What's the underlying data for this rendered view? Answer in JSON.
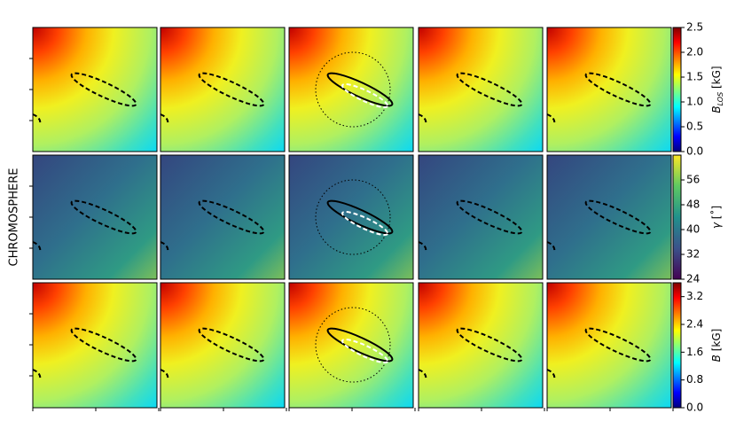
{
  "side_label": "CHROMOSPHERE",
  "chart_data": [
    {
      "type": "heatmap",
      "colormap": "jet",
      "colorbar_label": {
        "symbol": "B",
        "subscript": "LOS",
        "unit": " [kG]"
      },
      "clim": [
        0,
        2.5
      ],
      "cticks": [
        {
          "value": 0,
          "label": "0.0"
        },
        {
          "value": 0.5,
          "label": "0.5"
        },
        {
          "value": 1,
          "label": "1.0"
        },
        {
          "value": 1.5,
          "label": "1.5"
        },
        {
          "value": 2,
          "label": "2.0"
        },
        {
          "value": 2.5,
          "label": "2.5"
        }
      ]
    },
    {
      "type": "heatmap",
      "colormap": "viridis",
      "colorbar_label": {
        "symbol": "γ",
        "unit": " [˚]"
      },
      "clim": [
        24,
        64
      ],
      "cticks": [
        24,
        32,
        40,
        48,
        56
      ]
    },
    {
      "type": "heatmap",
      "colormap": "jet",
      "colorbar_label": {
        "symbol": "B",
        "unit": " [kG]"
      },
      "clim": [
        0,
        3.6
      ],
      "cticks": [
        {
          "value": 0,
          "label": "0.0"
        },
        {
          "value": 0.8,
          "label": "0.8"
        },
        {
          "value": 1.6,
          "label": "1.6"
        },
        {
          "value": 2.4,
          "label": "2.4"
        },
        {
          "value": 3.2,
          "label": "3.2"
        }
      ]
    }
  ]
}
